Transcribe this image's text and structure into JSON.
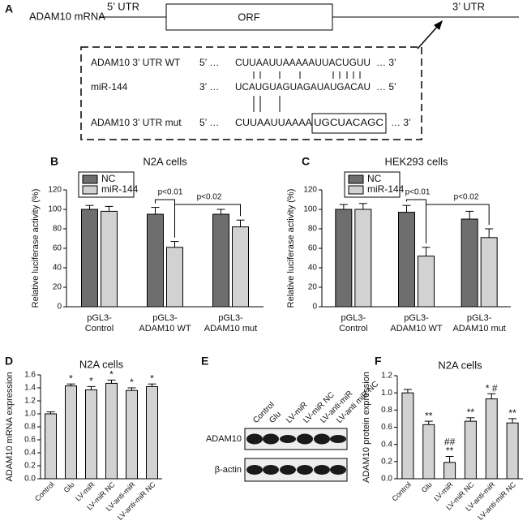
{
  "panel_a": {
    "label": "A",
    "gene": "ADAM10 mRNA",
    "utr5": "5’ UTR",
    "orf": "ORF",
    "utr3": "3’ UTR",
    "rows": [
      {
        "name": "ADAM10 3’ UTR  WT",
        "left": "5’ …",
        "seq": "CUUAAUUAAAAAUUACUGUU",
        "right": "… 3’"
      },
      {
        "name": "miR-144",
        "left": "3’ …",
        "seq": "UCAUGUAGUAGAUAUGACAU",
        "right": "… 5’"
      },
      {
        "name": "ADAM10 3’ UTR mut",
        "left": "5’ …",
        "seq": "CUUAAUUAAAA",
        "seq_boxed": "UGCUACAGC",
        "right": "… 3’"
      }
    ]
  },
  "panel_e": {
    "label": "E",
    "lanes": [
      "Control",
      "Glu",
      "LV-miR",
      "LV-miR NC",
      "LV-anti-miR",
      "LV-anti miR NC"
    ],
    "bands": [
      "ADAM10",
      "β-actin"
    ]
  },
  "chart_data": [
    {
      "type": "grouped-bar",
      "panel": "B",
      "title": "N2A cells",
      "ylabel": "Relative luciferase activity (%)",
      "categories": [
        [
          "pGL3-",
          "Control"
        ],
        [
          "pGL3-",
          "ADAM10 WT"
        ],
        [
          "pGL3-",
          "ADAM10 mut"
        ]
      ],
      "series": [
        {
          "name": "NC",
          "color": "#6e6e6e",
          "values": [
            100,
            95,
            95
          ],
          "errors": [
            4,
            7,
            5
          ]
        },
        {
          "name": "miR-144",
          "color": "#d2d2d2",
          "values": [
            98,
            61,
            82
          ],
          "errors": [
            5,
            6,
            7
          ]
        }
      ],
      "annotations": [
        "p<0.01",
        "p<0.02"
      ],
      "ylim": [
        0,
        120
      ],
      "yticks": [
        0,
        20,
        40,
        60,
        80,
        100,
        120
      ]
    },
    {
      "type": "grouped-bar",
      "panel": "C",
      "title": "HEK293 cells",
      "ylabel": "Relative luciferase activity (%)",
      "categories": [
        [
          "pGL3-",
          "Control"
        ],
        [
          "pGL3-",
          "ADAM10 WT"
        ],
        [
          "pGL3-",
          "ADAM10 mut"
        ]
      ],
      "series": [
        {
          "name": "NC",
          "color": "#6e6e6e",
          "values": [
            100,
            97,
            90
          ],
          "errors": [
            5,
            7,
            8
          ]
        },
        {
          "name": "miR-144",
          "color": "#d2d2d2",
          "values": [
            100,
            52,
            71
          ],
          "errors": [
            6,
            9,
            9
          ]
        }
      ],
      "annotations": [
        "p<0.01",
        "p<0.02"
      ],
      "ylim": [
        0,
        120
      ],
      "yticks": [
        0,
        20,
        40,
        60,
        80,
        100,
        120
      ]
    },
    {
      "type": "bar",
      "panel": "D",
      "title": "N2A cells",
      "ylabel": "ADAM10 mRNA expression",
      "color": "#d2d2d2",
      "categories": [
        "Control",
        "Glu",
        "LV-miR",
        "LV-miR NC",
        "LV-anti-miR",
        "LV-anti-miR NC"
      ],
      "values": [
        1.0,
        1.43,
        1.37,
        1.47,
        1.36,
        1.42
      ],
      "errors": [
        0.03,
        0.03,
        0.05,
        0.05,
        0.04,
        0.04
      ],
      "significance": [
        null,
        [
          "*"
        ],
        [
          "*"
        ],
        [
          "*"
        ],
        [
          "*"
        ],
        [
          "*"
        ]
      ],
      "ylim": [
        0,
        1.6
      ],
      "yticks": [
        {
          "value": 0,
          "label": "0.0"
        },
        0.2,
        0.4,
        0.6,
        0.8,
        {
          "value": 1,
          "label": "1.0"
        },
        1.2,
        1.4,
        1.6
      ]
    },
    {
      "type": "bar",
      "panel": "F",
      "title": "N2A cells",
      "ylabel": "ADAM10 protein expression",
      "color": "#d2d2d2",
      "categories": [
        "Control",
        "Glu",
        "LV-miR",
        "LV-miR NC",
        "LV-anti-miR",
        "LV-anti-miR NC"
      ],
      "values": [
        1.0,
        0.63,
        0.19,
        0.67,
        0.93,
        0.65
      ],
      "errors": [
        0.04,
        0.04,
        0.07,
        0.04,
        0.06,
        0.05
      ],
      "significance": [
        null,
        [
          "**"
        ],
        [
          "##",
          "**"
        ],
        [
          "**"
        ],
        [
          "* #"
        ],
        [
          "**"
        ]
      ],
      "ylim": [
        0,
        1.2
      ],
      "yticks": [
        {
          "value": 0,
          "label": "0.0"
        },
        0.2,
        0.4,
        0.6,
        0.8,
        {
          "value": 1,
          "label": "1.0"
        },
        1.2
      ]
    }
  ]
}
